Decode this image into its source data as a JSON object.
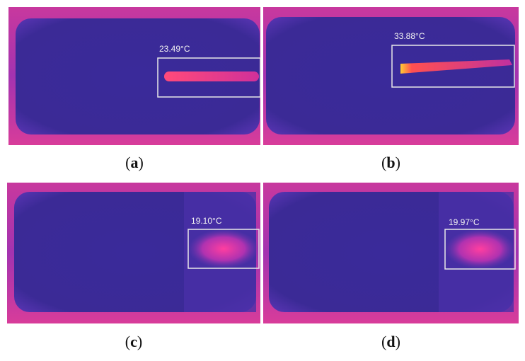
{
  "panels": [
    {
      "caption": [
        "(",
        "a",
        ")"
      ],
      "temperature": "23.49°C"
    },
    {
      "caption": [
        "(",
        "b",
        ")"
      ],
      "temperature": "33.88°C"
    },
    {
      "caption": [
        "(",
        "c",
        ")"
      ],
      "temperature": "19.10°C"
    },
    {
      "caption": [
        "(",
        "d",
        ")"
      ],
      "temperature": "19.97°C"
    }
  ]
}
